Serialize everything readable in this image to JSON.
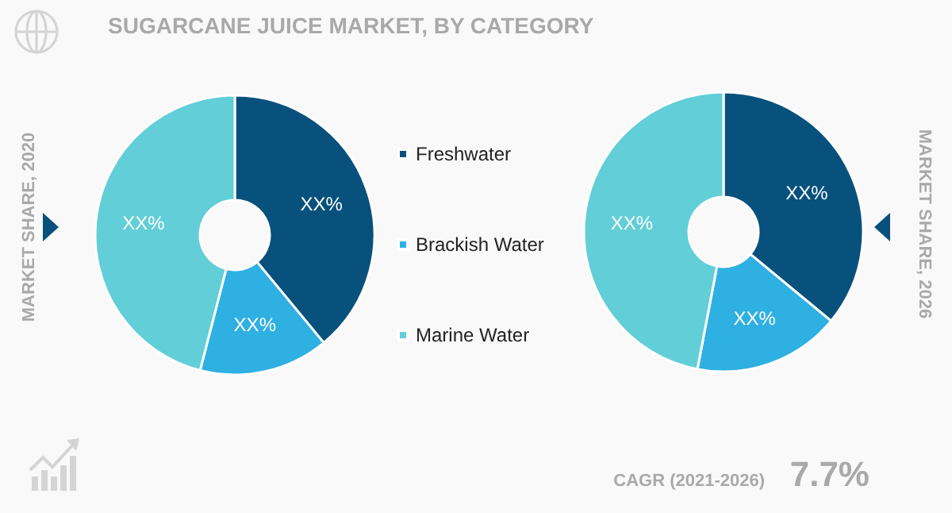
{
  "chart_data": {
    "type": "donut",
    "title": "SUGARCANE JUICE MARKET, BY CATEGORY",
    "categories": [
      "Freshwater",
      "Brackish Water",
      "Marine Water"
    ],
    "colors": [
      "#08517c",
      "#2fb0e2",
      "#62ced8"
    ],
    "legend": "right",
    "annotations": [
      "CAGR (2021-2026)",
      "7.7%"
    ],
    "series": [
      {
        "name": "MARKET SHARE, 2020",
        "values": [
          39,
          15,
          46
        ],
        "value_labels": [
          "XX%",
          "XX%",
          "XX%"
        ]
      },
      {
        "name": "MARKET SHARE, 2026",
        "values": [
          36,
          17,
          47
        ],
        "value_labels": [
          "XX%",
          "XX%",
          "XX%"
        ]
      }
    ]
  }
}
